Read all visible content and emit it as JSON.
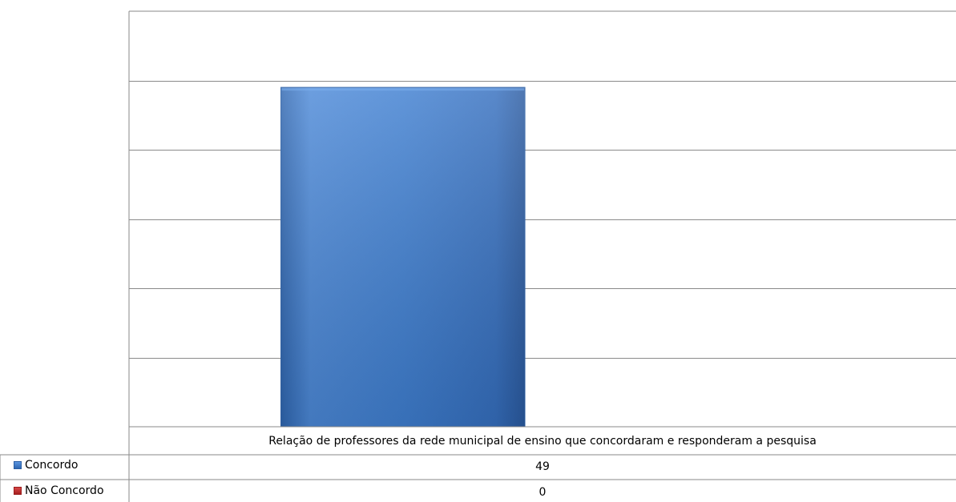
{
  "chart_data": {
    "type": "bar",
    "categories": [
      "Relação de professores da rede municipal de ensino que concordaram e responderam a pesquisa"
    ],
    "series": [
      {
        "name": "Concordo",
        "values": [
          49
        ],
        "color": "#3f7fd1"
      },
      {
        "name": "Não Concordo",
        "values": [
          0
        ],
        "color": "#c62828"
      }
    ],
    "ylim": [
      0,
      60
    ],
    "grid": true,
    "legend": "bottom-left-table",
    "table": {
      "header": "Relação de professores da rede municipal de ensino que concordaram e responderam a pesquisa",
      "rows": [
        {
          "label": "Concordo",
          "value": "49"
        },
        {
          "label": "Não Concordo",
          "value": "0"
        }
      ]
    }
  }
}
